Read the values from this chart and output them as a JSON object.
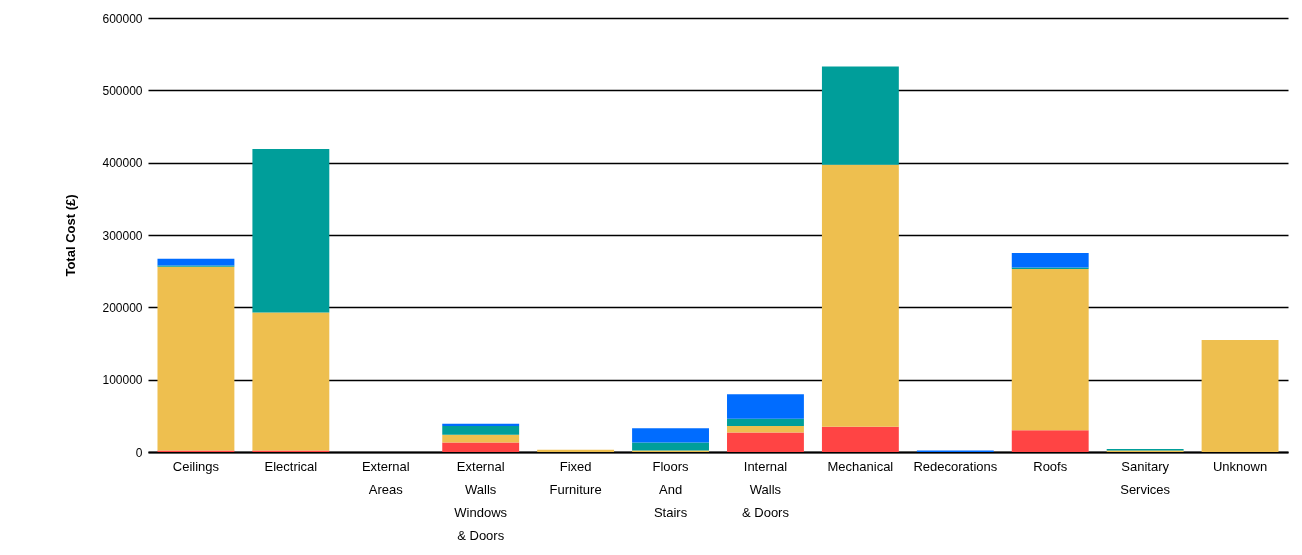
{
  "chart_data": {
    "type": "bar",
    "stacked": true,
    "ylabel": "Total Cost (£)",
    "categories": [
      "Ceilings",
      "Electrical",
      "External Areas",
      "External Walls Windows & Doors",
      "Fixed Furniture",
      "Floors And Stairs",
      "Internal Walls & Doors",
      "Mechanical",
      "Redecorations",
      "Roofs",
      "Sanitary Services",
      "Unknown"
    ],
    "series": [
      {
        "color": "#ff4444",
        "values": [
          2000,
          2000,
          0,
          13000,
          0,
          0,
          27000,
          35000,
          0,
          30000,
          0,
          0
        ]
      },
      {
        "color": "#eebf4f",
        "values": [
          254000,
          191000,
          0,
          11000,
          3000,
          2000,
          9000,
          362000,
          0,
          223000,
          2000,
          155000
        ]
      },
      {
        "color": "#009e9a",
        "values": [
          2000,
          226000,
          0,
          12000,
          0,
          11000,
          10000,
          136000,
          0,
          2000,
          2000,
          0
        ]
      },
      {
        "color": "#006cff",
        "values": [
          9000,
          0,
          0,
          3000,
          0,
          20000,
          34000,
          0,
          2000,
          20000,
          0,
          0
        ]
      }
    ],
    "ylim": [
      0,
      600000
    ],
    "yticks": [
      0,
      100000,
      200000,
      300000,
      400000,
      500000,
      600000
    ],
    "grid": "y"
  }
}
